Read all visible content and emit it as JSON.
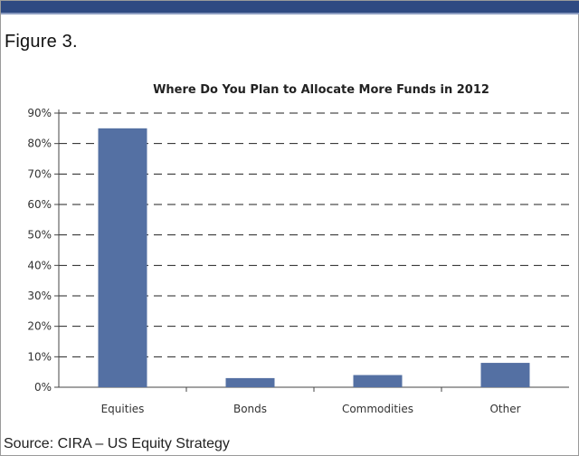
{
  "figure_label": "Figure 3.",
  "source": "Source: CIRA – US Equity Strategy",
  "colors": {
    "bar": "#5470a3",
    "header_rule": "#2f4a82",
    "grid": "#222222"
  },
  "chart_data": {
    "type": "bar",
    "title": "Where Do You Plan to Allocate More Funds in 2012",
    "categories": [
      "Equities",
      "Bonds",
      "Commodities",
      "Other"
    ],
    "values": [
      85,
      3,
      4,
      8
    ],
    "yticks": [
      "0%",
      "10%",
      "20%",
      "30%",
      "40%",
      "50%",
      "60%",
      "70%",
      "80%",
      "90%"
    ],
    "ylim": [
      0,
      90
    ],
    "xlabel": "",
    "ylabel": "",
    "grid": true
  }
}
